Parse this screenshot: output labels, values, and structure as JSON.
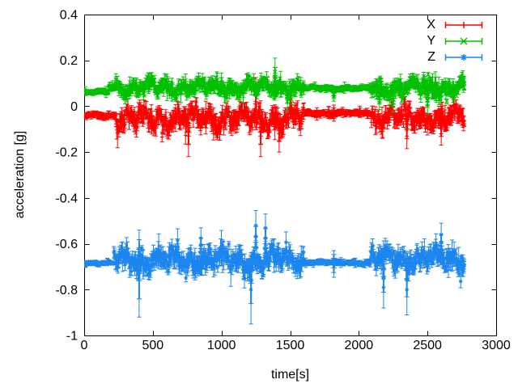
{
  "chart_data": {
    "type": "line",
    "style": "yerrorbars",
    "title": "",
    "xlabel": "time[s]",
    "ylabel": "acceleration [g]",
    "xlim": [
      0,
      3000
    ],
    "ylim": [
      -1,
      0.4
    ],
    "grid": false,
    "background": "#ffffff",
    "axis_color": "#000000",
    "xticks": {
      "values": [
        0,
        500,
        1000,
        1500,
        2000,
        2500,
        3000
      ],
      "labels": [
        "0",
        "500",
        "1000",
        "1500",
        "2000",
        "2500",
        "3000"
      ]
    },
    "yticks": {
      "values": [
        -1,
        -0.8,
        -0.6,
        -0.4,
        -0.2,
        0,
        0.2,
        0.4
      ],
      "labels": [
        "-1",
        "-0.8",
        "-0.6",
        "-0.4",
        "-0.2",
        "0",
        "0.2",
        "0.4"
      ]
    },
    "legend": {
      "position": "top-right-inside"
    },
    "sampling": {
      "t_start": 0,
      "t_end": 2772,
      "dt_s": 3,
      "seed": 1234567
    },
    "series": [
      {
        "name": "X",
        "color": "#ff0000",
        "marker": "plus",
        "segments": [
          {
            "t0": 0,
            "t1": 230,
            "mean": -0.04,
            "jitter": 0.004,
            "wobble": 0.005,
            "err": 0.011
          },
          {
            "t0": 230,
            "t1": 1600,
            "mean": -0.055,
            "jitter": 0.024,
            "wobble": 0.034,
            "err": 0.028
          },
          {
            "t0": 1600,
            "t1": 2090,
            "mean": -0.03,
            "jitter": 0.004,
            "wobble": 0.004,
            "err": 0.01
          },
          {
            "t0": 2090,
            "t1": 2772,
            "mean": -0.05,
            "jitter": 0.023,
            "wobble": 0.03,
            "err": 0.026
          }
        ],
        "outliers": [
          {
            "t": 760,
            "y": -0.165,
            "err": 0.055
          },
          {
            "t": 1250,
            "y": 0.055,
            "err": 0.07
          },
          {
            "t": 1285,
            "y": -0.165,
            "err": 0.055
          },
          {
            "t": 1420,
            "y": -0.15,
            "err": 0.05
          },
          {
            "t": 1818,
            "y": -0.03,
            "err": 0.035
          },
          {
            "t": 2350,
            "y": -0.13,
            "err": 0.055
          },
          {
            "t": 2600,
            "y": -0.12,
            "err": 0.05
          }
        ]
      },
      {
        "name": "Y",
        "color": "#00c000",
        "marker": "cross",
        "segments": [
          {
            "t0": 0,
            "t1": 180,
            "mean": 0.062,
            "jitter": 0.003,
            "wobble": 0.004,
            "err": 0.009
          },
          {
            "t0": 180,
            "t1": 230,
            "mean": 0.085,
            "jitter": 0.008,
            "wobble": 0.006,
            "err": 0.012
          },
          {
            "t0": 230,
            "t1": 1600,
            "mean": 0.082,
            "jitter": 0.018,
            "wobble": 0.024,
            "err": 0.021
          },
          {
            "t0": 1600,
            "t1": 2090,
            "mean": 0.078,
            "jitter": 0.004,
            "wobble": 0.004,
            "err": 0.009
          },
          {
            "t0": 2090,
            "t1": 2772,
            "mean": 0.08,
            "jitter": 0.019,
            "wobble": 0.026,
            "err": 0.022
          }
        ],
        "outliers": [
          {
            "t": 470,
            "y": 0.1,
            "err": 0.045
          },
          {
            "t": 1000,
            "y": 0.1,
            "err": 0.045
          },
          {
            "t": 1390,
            "y": 0.15,
            "err": 0.06
          },
          {
            "t": 1480,
            "y": 0.02,
            "err": 0.04
          },
          {
            "t": 1818,
            "y": 0.04,
            "err": 0.018
          },
          {
            "t": 2150,
            "y": 0.015,
            "err": 0.03
          },
          {
            "t": 2250,
            "y": 0.005,
            "err": 0.03
          },
          {
            "t": 2304,
            "y": 0.09,
            "err": 0.05
          },
          {
            "t": 2481,
            "y": 0.085,
            "err": 0.045
          },
          {
            "t": 2500,
            "y": 0.0,
            "err": 0.035
          },
          {
            "t": 2558,
            "y": 0.1,
            "err": 0.05
          },
          {
            "t": 2687,
            "y": 0.08,
            "err": 0.04
          }
        ]
      },
      {
        "name": "Z",
        "color": "#1c86ee",
        "marker": "asterisk",
        "segments": [
          {
            "t0": 0,
            "t1": 215,
            "mean": -0.684,
            "jitter": 0.003,
            "wobble": 0.004,
            "err": 0.008
          },
          {
            "t0": 215,
            "t1": 1600,
            "mean": -0.672,
            "jitter": 0.027,
            "wobble": 0.031,
            "err": 0.03
          },
          {
            "t0": 1600,
            "t1": 2085,
            "mean": -0.682,
            "jitter": 0.004,
            "wobble": 0.004,
            "err": 0.009
          },
          {
            "t0": 2085,
            "t1": 2772,
            "mean": -0.665,
            "jitter": 0.027,
            "wobble": 0.029,
            "err": 0.028
          }
        ],
        "outliers": [
          {
            "t": 400,
            "y": -0.73,
            "err": 0.19
          },
          {
            "t": 680,
            "y": -0.585,
            "err": 0.05
          },
          {
            "t": 850,
            "y": -0.575,
            "err": 0.045
          },
          {
            "t": 1215,
            "y": -0.8,
            "err": 0.15
          },
          {
            "t": 1250,
            "y": -0.52,
            "err": 0.065
          },
          {
            "t": 1320,
            "y": -0.53,
            "err": 0.06
          },
          {
            "t": 1818,
            "y": -0.688,
            "err": 0.058
          },
          {
            "t": 2180,
            "y": -0.79,
            "err": 0.09
          },
          {
            "t": 2350,
            "y": -0.8,
            "err": 0.11
          },
          {
            "t": 2600,
            "y": -0.56,
            "err": 0.05
          }
        ]
      }
    ]
  }
}
